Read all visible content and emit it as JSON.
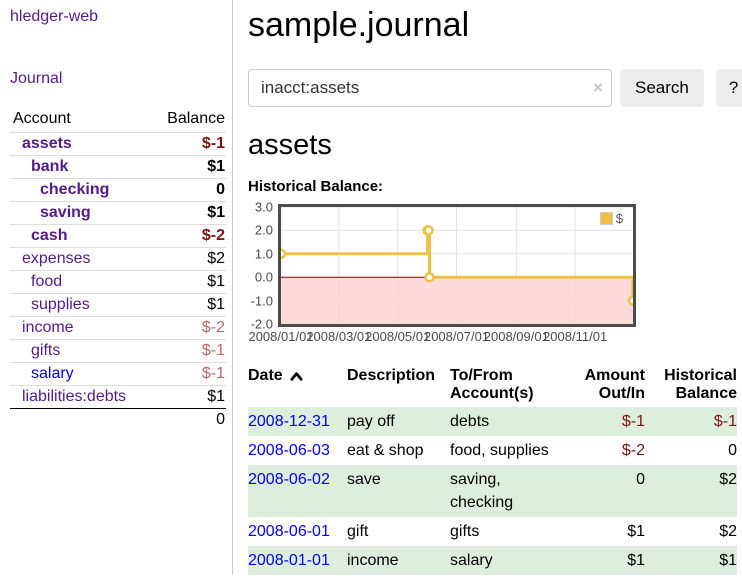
{
  "colors": {
    "purple": "#551a8b",
    "blue": "#0000ee",
    "dark_red": "#7b1512",
    "light_red": "#bb6868",
    "black": "#000000",
    "row_green": "#ddeedd",
    "chart_line": "#edc240",
    "chart_negative_bg": "#fcd3d3",
    "zero_line": "#8b0000",
    "grid": "#e2e2e2"
  },
  "sidebar": {
    "app_title": "hledger-web",
    "journal_link": "Journal",
    "table": {
      "headers": [
        "Account",
        "Balance"
      ],
      "rows": [
        {
          "account": "assets",
          "balance": "$-1",
          "depth": 1,
          "bold": true,
          "balance_color": "dark_red",
          "link_color": "purple"
        },
        {
          "account": "bank",
          "balance": "$1",
          "depth": 2,
          "bold": true,
          "balance_color": "black",
          "link_color": "purple"
        },
        {
          "account": "checking",
          "balance": "0",
          "depth": 3,
          "bold": true,
          "balance_color": "black",
          "link_color": "purple"
        },
        {
          "account": "saving",
          "balance": "$1",
          "depth": 3,
          "bold": true,
          "balance_color": "black",
          "link_color": "purple"
        },
        {
          "account": "cash",
          "balance": "$-2",
          "depth": 2,
          "bold": true,
          "balance_color": "dark_red",
          "link_color": "purple"
        },
        {
          "account": "expenses",
          "balance": "$2",
          "depth": 1,
          "bold": false,
          "balance_color": "black",
          "link_color": "purple"
        },
        {
          "account": "food",
          "balance": "$1",
          "depth": 2,
          "bold": false,
          "balance_color": "black",
          "link_color": "purple"
        },
        {
          "account": "supplies",
          "balance": "$1",
          "depth": 2,
          "bold": false,
          "balance_color": "black",
          "link_color": "purple"
        },
        {
          "account": "income",
          "balance": "$-2",
          "depth": 1,
          "bold": false,
          "balance_color": "light_red",
          "link_color": "purple"
        },
        {
          "account": "gifts",
          "balance": "$-1",
          "depth": 2,
          "bold": false,
          "balance_color": "light_red",
          "link_color": "purple"
        },
        {
          "account": "salary",
          "balance": "$-1",
          "depth": 2,
          "bold": false,
          "balance_color": "light_red",
          "link_color": "blue"
        },
        {
          "account": "liabilities:debts",
          "balance": "$1",
          "depth": 1,
          "bold": false,
          "balance_color": "black",
          "link_color": "purple"
        }
      ],
      "total": "0"
    }
  },
  "main": {
    "title": "sample.journal",
    "search": {
      "value": "inacct:assets",
      "clear_icon": "×",
      "button": "Search",
      "help_button": "?"
    },
    "account_heading": "assets",
    "chart_label": "Historical Balance:",
    "register": {
      "headers": [
        "Date",
        "Description",
        "To/From Account(s)",
        "Amount Out/In",
        "Historical Balance"
      ],
      "rows": [
        {
          "date": "2008-12-31",
          "description": "pay off",
          "accounts": "debts",
          "amount": "$-1",
          "balance": "$-1",
          "amount_neg": true,
          "balance_neg": true
        },
        {
          "date": "2008-06-03",
          "description": "eat & shop",
          "accounts": "food, supplies",
          "amount": "$-2",
          "balance": "0",
          "amount_neg": true,
          "balance_neg": false
        },
        {
          "date": "2008-06-02",
          "description": "save",
          "accounts": "saving, checking",
          "amount": "0",
          "balance": "$2",
          "amount_neg": false,
          "balance_neg": false
        },
        {
          "date": "2008-06-01",
          "description": "gift",
          "accounts": "gifts",
          "amount": "$1",
          "balance": "$2",
          "amount_neg": false,
          "balance_neg": false
        },
        {
          "date": "2008-01-01",
          "description": "income",
          "accounts": "salary",
          "amount": "$1",
          "balance": "$1",
          "amount_neg": false,
          "balance_neg": false
        }
      ]
    }
  },
  "chart_data": {
    "type": "line",
    "style": "step",
    "title": "Historical Balance",
    "legend": "$",
    "legend_position": "top-right",
    "grid": true,
    "series": [
      {
        "name": "$",
        "color": "#edc240",
        "points": [
          {
            "date": "2008-01-01",
            "value": 1
          },
          {
            "date": "2008-06-01",
            "value": 2
          },
          {
            "date": "2008-06-02",
            "value": 2
          },
          {
            "date": "2008-06-03",
            "value": 0
          },
          {
            "date": "2008-12-31",
            "value": -1
          }
        ]
      }
    ],
    "x_range": [
      "2008-01-01",
      "2008-12-31"
    ],
    "ylim": [
      -2,
      3
    ],
    "x_ticks": [
      "2008/01/01",
      "2008/03/01",
      "2008/05/01",
      "2008/07/01",
      "2008/09/01",
      "2008/11/01"
    ],
    "y_ticks": [
      "3.0",
      "2.0",
      "1.0",
      "0.0",
      "-1.0",
      "-2.0"
    ],
    "negative_region_color": "#fcd3d3",
    "zero_line_color": "#8b0000"
  }
}
